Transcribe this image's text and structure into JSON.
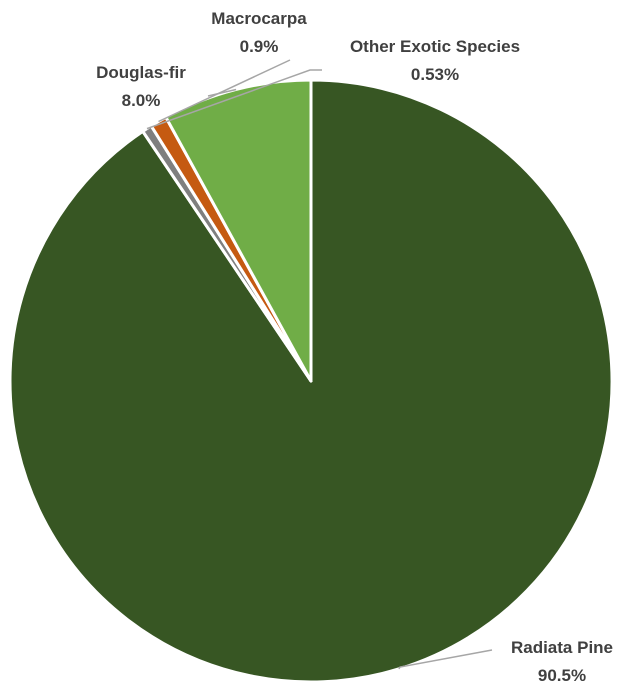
{
  "chart_data": {
    "type": "pie",
    "title": "",
    "slices": [
      {
        "label": "Radiata Pine",
        "value": 90.5,
        "value_label": "90.5%",
        "color": "#375623"
      },
      {
        "label": "Other Exotic Species",
        "value": 0.53,
        "value_label": "0.53%",
        "color": "#7f7f7f"
      },
      {
        "label": "Macrocarpa",
        "value": 0.9,
        "value_label": "0.9%",
        "color": "#c55a11"
      },
      {
        "label": "Douglas-fir",
        "value": 8.0,
        "value_label": "8.0%",
        "color": "#70ad47"
      }
    ],
    "start": "12 o'clock",
    "direction": "clockwise",
    "legend": "none",
    "label_style": "outside with leader lines"
  }
}
